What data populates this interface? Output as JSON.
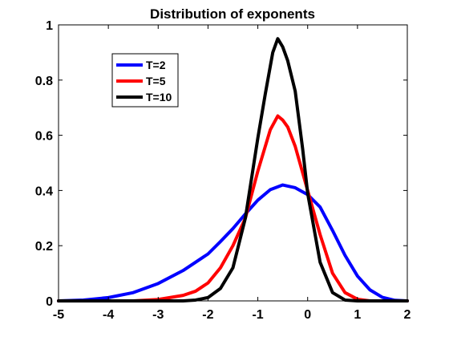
{
  "chart_data": {
    "type": "line",
    "title": "Distribution of exponents",
    "xlabel": "",
    "ylabel": "",
    "xlim": [
      -5,
      2
    ],
    "ylim": [
      0,
      1
    ],
    "xticks": [
      "-5",
      "-4",
      "-3",
      "-2",
      "-1",
      "0",
      "1",
      "2"
    ],
    "yticks": [
      "0",
      "0.2",
      "0.4",
      "0.6",
      "0.8",
      "1"
    ],
    "grid": false,
    "legend_position": "top-left",
    "series": [
      {
        "name": "T=2",
        "color": "#0000ff",
        "x": [
          -5.0,
          -4.5,
          -4.0,
          -3.5,
          -3.0,
          -2.5,
          -2.0,
          -1.75,
          -1.5,
          -1.25,
          -1.0,
          -0.75,
          -0.5,
          -0.25,
          0.0,
          0.25,
          0.5,
          0.75,
          1.0,
          1.25,
          1.5,
          1.75,
          2.0
        ],
        "y": [
          0.0,
          0.003,
          0.012,
          0.03,
          0.063,
          0.11,
          0.17,
          0.215,
          0.262,
          0.315,
          0.365,
          0.403,
          0.42,
          0.41,
          0.385,
          0.34,
          0.255,
          0.165,
          0.09,
          0.04,
          0.013,
          0.002,
          0.0
        ]
      },
      {
        "name": "T=5",
        "color": "#ff0000",
        "x": [
          -5.0,
          -3.5,
          -3.0,
          -2.5,
          -2.25,
          -2.0,
          -1.75,
          -1.5,
          -1.25,
          -1.0,
          -0.75,
          -0.6,
          -0.5,
          -0.4,
          -0.25,
          0.0,
          0.25,
          0.5,
          0.75,
          1.0,
          1.25,
          2.0
        ],
        "y": [
          0.0,
          0.0,
          0.005,
          0.02,
          0.035,
          0.065,
          0.12,
          0.2,
          0.3,
          0.47,
          0.62,
          0.67,
          0.655,
          0.63,
          0.56,
          0.4,
          0.24,
          0.1,
          0.03,
          0.006,
          0.0,
          0.0
        ]
      },
      {
        "name": "T=10",
        "color": "#000000",
        "x": [
          -5.0,
          -2.5,
          -2.25,
          -2.0,
          -1.75,
          -1.5,
          -1.25,
          -1.0,
          -0.85,
          -0.7,
          -0.6,
          -0.5,
          -0.4,
          -0.25,
          -0.1,
          0.0,
          0.25,
          0.5,
          0.75,
          1.0,
          2.0
        ],
        "y": [
          0.0,
          0.0,
          0.003,
          0.012,
          0.045,
          0.12,
          0.3,
          0.59,
          0.75,
          0.9,
          0.95,
          0.92,
          0.87,
          0.76,
          0.55,
          0.39,
          0.14,
          0.03,
          0.003,
          0.0,
          0.0
        ]
      }
    ]
  }
}
